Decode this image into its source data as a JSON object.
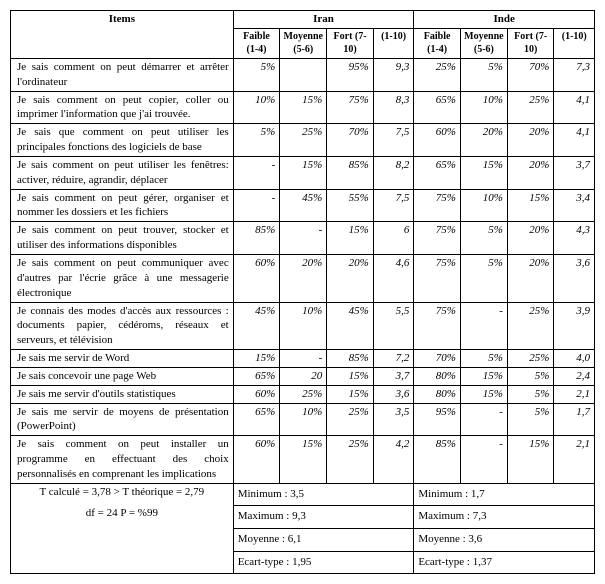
{
  "headers": {
    "items": "Items",
    "iran": "Iran",
    "inde": "Inde",
    "faible": "Faible (1-4)",
    "moyenne": "Moyenne (5-6)",
    "fort": "Fort (7-10)",
    "range": "(1-10)"
  },
  "rows": [
    {
      "item": "Je sais  comment on peut  démarrer et arrêter l'ordinateur",
      "iran_f": "5%",
      "iran_m": "",
      "iran_ft": "95%",
      "iran_r": "9,3",
      "inde_f": "25%",
      "inde_m": "5%",
      "inde_ft": "70%",
      "inde_r": "7,3"
    },
    {
      "item": "Je sais comment on peut copier, coller ou imprimer l'information que j'ai trouvée.",
      "iran_f": "10%",
      "iran_m": "15%",
      "iran_ft": "75%",
      "iran_r": "8,3",
      "inde_f": "65%",
      "inde_m": "10%",
      "inde_ft": "25%",
      "inde_r": "4,1"
    },
    {
      "item": "Je sais que comment on peut utiliser les principales fonctions des logiciels de base",
      "iran_f": "5%",
      "iran_m": "25%",
      "iran_ft": "70%",
      "iran_r": "7,5",
      "inde_f": "60%",
      "inde_m": "20%",
      "inde_ft": "20%",
      "inde_r": "4,1"
    },
    {
      "item": "Je sais comment on peut utiliser les fenêtres: activer, réduire, agrandir, déplacer",
      "iran_f": "-",
      "iran_m": "15%",
      "iran_ft": "85%",
      "iran_r": "8,2",
      "inde_f": "65%",
      "inde_m": "15%",
      "inde_ft": "20%",
      "inde_r": "3,7"
    },
    {
      "item": "Je sais comment on peut gérer, organiser et nommer les dossiers et les fichiers",
      "iran_f": "-",
      "iran_m": "45%",
      "iran_ft": "55%",
      "iran_r": "7,5",
      "inde_f": "75%",
      "inde_m": "10%",
      "inde_ft": "15%",
      "inde_r": "3,4"
    },
    {
      "item": "Je sais comment on peut trouver, stocker et utiliser des informations disponibles",
      "iran_f": "85%",
      "iran_m": "-",
      "iran_ft": "15%",
      "iran_r": "6",
      "inde_f": "75%",
      "inde_m": "5%",
      "inde_ft": "20%",
      "inde_r": "4,3"
    },
    {
      "item": "Je sais  comment on peut communiquer avec d'autres par l'écrie grâce à une messagerie électronique",
      "iran_f": "60%",
      "iran_m": "20%",
      "iran_ft": "20%",
      "iran_r": "4,6",
      "inde_f": "75%",
      "inde_m": "5%",
      "inde_ft": "20%",
      "inde_r": "3,6"
    },
    {
      "item": "Je connais des modes d'accès aux ressources : documents papier, cédéroms, réseaux et serveurs, et télévision",
      "iran_f": "45%",
      "iran_m": "10%",
      "iran_ft": "45%",
      "iran_r": "5,5",
      "inde_f": "75%",
      "inde_m": "-",
      "inde_ft": "25%",
      "inde_r": "3,9"
    },
    {
      "item": "Je sais me servir de Word",
      "iran_f": "15%",
      "iran_m": "-",
      "iran_ft": "85%",
      "iran_r": "7,2",
      "inde_f": "70%",
      "inde_m": "5%",
      "inde_ft": "25%",
      "inde_r": "4,0"
    },
    {
      "item": "Je sais concevoir une page Web",
      "iran_f": "65%",
      "iran_m": "20",
      "iran_ft": "15%",
      "iran_r": "3,7",
      "inde_f": "80%",
      "inde_m": "15%",
      "inde_ft": "5%",
      "inde_r": "2,4"
    },
    {
      "item": "Je sais me servir d'outils statistiques",
      "iran_f": "60%",
      "iran_m": "25%",
      "iran_ft": "15%",
      "iran_r": "3,6",
      "inde_f": "80%",
      "inde_m": "15%",
      "inde_ft": "5%",
      "inde_r": "2,1"
    },
    {
      "item": "Je sais me servir de moyens de présentation (PowerPoint)",
      "iran_f": "65%",
      "iran_m": "10%",
      "iran_ft": "25%",
      "iran_r": "3,5",
      "inde_f": "95%",
      "inde_m": "-",
      "inde_ft": "5%",
      "inde_r": "1,7"
    },
    {
      "item": "Je sais  comment on peut installer un programme en effectuant des choix personnalisés en comprenant les implications",
      "iran_f": "60%",
      "iran_m": "15%",
      "iran_ft": "25%",
      "iran_r": "4,2",
      "inde_f": "85%",
      "inde_m": "-",
      "inde_ft": "15%",
      "inde_r": "2,1"
    }
  ],
  "footer": {
    "tcalc": "T calculé = 3,78 > T théorique = 2,79",
    "df": "df =  24         P = %99",
    "iran_min": "Minimum : 3,5",
    "iran_max": "Maximum : 9,3",
    "iran_moy": "Moyenne : 6,1",
    "iran_et": "Ecart-type : 1,95",
    "inde_min": "Minimum : 1,7",
    "inde_max": "Maximum : 7,3",
    "inde_moy": "Moyenne : 3,6",
    "inde_et": "Ecart-type : 1,37"
  },
  "colwidths": {
    "item": 220,
    "val": 46
  }
}
